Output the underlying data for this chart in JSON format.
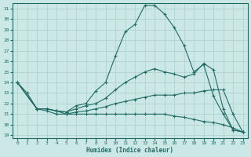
{
  "xlabel": "Humidex (Indice chaleur)",
  "xlim": [
    -0.5,
    23.5
  ],
  "ylim": [
    18.7,
    31.5
  ],
  "yticks": [
    19,
    20,
    21,
    22,
    23,
    24,
    25,
    26,
    27,
    28,
    29,
    30,
    31
  ],
  "xticks": [
    0,
    1,
    2,
    3,
    4,
    5,
    6,
    7,
    8,
    9,
    10,
    11,
    12,
    13,
    14,
    15,
    16,
    17,
    18,
    19,
    20,
    21,
    22,
    23
  ],
  "bg_color": "#cce8e6",
  "line_color": "#1f6b63",
  "grid_color": "#aacfcc",
  "lines": [
    {
      "x": [
        0,
        1,
        2,
        3,
        4,
        5,
        6,
        7,
        8,
        9,
        10,
        11,
        12,
        13,
        14,
        15,
        16,
        17,
        18,
        19,
        20,
        21,
        22,
        23
      ],
      "y": [
        24.0,
        23.0,
        21.5,
        21.5,
        21.3,
        21.2,
        21.8,
        22.0,
        23.2,
        24.0,
        26.5,
        28.8,
        29.5,
        31.3,
        31.3,
        30.5,
        29.2,
        27.5,
        25.0,
        25.7,
        22.7,
        21.0,
        19.5,
        19.3
      ]
    },
    {
      "x": [
        0,
        2,
        3,
        4,
        5,
        6,
        7,
        8,
        9,
        10,
        11,
        12,
        13,
        14,
        15,
        16,
        17,
        18,
        19,
        20,
        21,
        22,
        23
      ],
      "y": [
        24.0,
        21.5,
        21.5,
        21.3,
        21.2,
        21.5,
        21.8,
        22.0,
        22.5,
        23.3,
        24.0,
        24.5,
        25.0,
        25.3,
        25.0,
        24.8,
        24.5,
        24.8,
        25.8,
        25.2,
        21.5,
        19.5,
        19.3
      ]
    },
    {
      "x": [
        0,
        2,
        3,
        4,
        5,
        6,
        7,
        8,
        9,
        10,
        11,
        12,
        13,
        14,
        15,
        16,
        17,
        18,
        19,
        20,
        21,
        22,
        23
      ],
      "y": [
        24.0,
        21.5,
        21.5,
        21.3,
        21.0,
        21.2,
        21.3,
        21.5,
        21.7,
        22.0,
        22.2,
        22.4,
        22.6,
        22.8,
        22.8,
        22.8,
        23.0,
        23.0,
        23.2,
        23.3,
        23.3,
        21.0,
        19.3
      ]
    },
    {
      "x": [
        0,
        2,
        3,
        4,
        5,
        6,
        7,
        8,
        9,
        10,
        11,
        12,
        13,
        14,
        15,
        16,
        17,
        18,
        19,
        20,
        21,
        22,
        23
      ],
      "y": [
        24.0,
        21.5,
        21.3,
        21.0,
        21.0,
        21.0,
        21.0,
        21.0,
        21.0,
        21.0,
        21.0,
        21.0,
        21.0,
        21.0,
        21.0,
        20.8,
        20.7,
        20.5,
        20.3,
        20.2,
        20.0,
        19.7,
        19.3
      ]
    }
  ]
}
